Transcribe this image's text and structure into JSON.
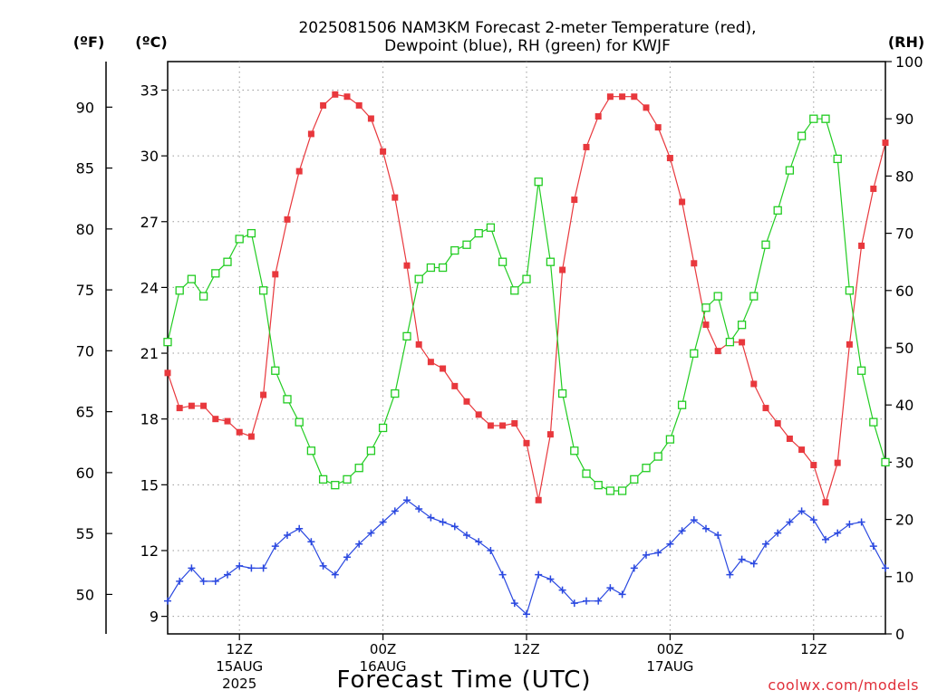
{
  "chart_data": {
    "type": "line",
    "title_line1": "2025081506 NAM3KM Forecast 2-meter Temperature (red),",
    "title_line2": "Dewpoint (blue), RH (green) for KWJF",
    "units": {
      "fahrenheit": "(ºF)",
      "celsius": "(ºC)",
      "rh": "(RH)"
    },
    "xlabel": "Forecast Time (UTC)",
    "credit": "coolwx.com/models",
    "x_range_hours": [
      0,
      60
    ],
    "celsius_axis": {
      "ylim": [
        8.2,
        34.3
      ],
      "ticks": [
        "9",
        "12",
        "15",
        "18",
        "21",
        "24",
        "27",
        "30",
        "33"
      ]
    },
    "fahrenheit_axis": {
      "ticks": [
        "50",
        "55",
        "60",
        "65",
        "70",
        "75",
        "80",
        "85",
        "90"
      ]
    },
    "rh_axis": {
      "ylim": [
        0,
        100
      ],
      "ticks": [
        "0",
        "10",
        "20",
        "30",
        "40",
        "50",
        "60",
        "70",
        "80",
        "90",
        "100"
      ]
    },
    "x_ticks": [
      {
        "hour": 6,
        "line1": "12Z",
        "line2": "15AUG",
        "line3": "2025"
      },
      {
        "hour": 18,
        "line1": "00Z",
        "line2": "16AUG",
        "line3": ""
      },
      {
        "hour": 30,
        "line1": "12Z",
        "line2": "",
        "line3": ""
      },
      {
        "hour": 42,
        "line1": "00Z",
        "line2": "17AUG",
        "line3": ""
      },
      {
        "hour": 54,
        "line1": "12Z",
        "line2": "",
        "line3": ""
      }
    ],
    "grid": true,
    "series": [
      {
        "key": "temperature",
        "axis": "celsius",
        "color": "#e8383d",
        "marker": "filled-square",
        "x": [
          0,
          1,
          2,
          3,
          4,
          5,
          6,
          7,
          8,
          9,
          10,
          11,
          12,
          13,
          14,
          15,
          16,
          17,
          18,
          19,
          20,
          21,
          22,
          23,
          24,
          25,
          26,
          27,
          28,
          29,
          30,
          31,
          32,
          33,
          34,
          35,
          36,
          37,
          38,
          39,
          40,
          41,
          42,
          43,
          44,
          45,
          46,
          47,
          48,
          49,
          50,
          51,
          52,
          53,
          54,
          55,
          56,
          57,
          58,
          59,
          60
        ],
        "values": [
          20.1,
          18.5,
          18.6,
          18.6,
          18.0,
          17.9,
          17.4,
          17.2,
          19.1,
          24.6,
          27.1,
          29.3,
          31.0,
          32.3,
          32.8,
          32.7,
          32.3,
          31.7,
          30.2,
          28.1,
          25.0,
          21.4,
          20.6,
          20.3,
          19.5,
          18.8,
          18.2,
          17.7,
          17.7,
          17.8,
          16.9,
          14.3,
          17.3,
          24.8,
          28.0,
          30.4,
          31.8,
          32.7,
          32.7,
          32.7,
          32.2,
          31.3,
          29.9,
          27.9,
          25.1,
          22.3,
          21.1,
          21.5,
          21.5,
          19.6,
          18.5,
          17.8,
          17.1,
          16.6,
          15.9,
          14.2,
          16.0,
          21.4,
          25.9,
          28.5,
          30.6
        ]
      },
      {
        "key": "dewpoint",
        "axis": "celsius",
        "color": "#2a48e0",
        "marker": "plus",
        "x": [
          0,
          1,
          2,
          3,
          4,
          5,
          6,
          7,
          8,
          9,
          10,
          11,
          12,
          13,
          14,
          15,
          16,
          17,
          18,
          19,
          20,
          21,
          22,
          23,
          24,
          25,
          26,
          27,
          28,
          29,
          30,
          31,
          32,
          33,
          34,
          35,
          36,
          37,
          38,
          39,
          40,
          41,
          42,
          43,
          44,
          45,
          46,
          47,
          48,
          49,
          50,
          51,
          52,
          53,
          54,
          55,
          56,
          57,
          58,
          59,
          60
        ],
        "values": [
          9.7,
          10.6,
          11.2,
          10.6,
          10.6,
          10.9,
          11.3,
          11.2,
          11.2,
          12.2,
          12.7,
          13.0,
          12.4,
          11.3,
          10.9,
          11.7,
          12.3,
          12.8,
          13.3,
          13.8,
          14.3,
          13.9,
          13.5,
          13.3,
          13.1,
          12.7,
          12.4,
          12.0,
          10.9,
          9.6,
          9.1,
          10.9,
          10.7,
          10.2,
          9.6,
          9.7,
          9.7,
          10.3,
          10.0,
          11.2,
          11.8,
          11.9,
          12.3,
          12.9,
          13.4,
          13.0,
          12.7,
          10.9,
          11.6,
          11.4,
          12.3,
          12.8,
          13.3,
          13.8,
          13.4,
          12.5,
          12.8,
          13.2,
          13.3,
          12.2,
          11.2
        ]
      },
      {
        "key": "rh",
        "axis": "rh",
        "color": "#22cc22",
        "marker": "open-square",
        "x": [
          0,
          1,
          2,
          3,
          4,
          5,
          6,
          7,
          8,
          9,
          10,
          11,
          12,
          13,
          14,
          15,
          16,
          17,
          18,
          19,
          20,
          21,
          22,
          23,
          24,
          25,
          26,
          27,
          28,
          29,
          30,
          31,
          32,
          33,
          34,
          35,
          36,
          37,
          38,
          39,
          40,
          41,
          42,
          43,
          44,
          45,
          46,
          47,
          48,
          49,
          50,
          51,
          52,
          53,
          54,
          55,
          56,
          57,
          58,
          59,
          60
        ],
        "values": [
          51,
          60,
          62,
          59,
          63,
          65,
          69,
          70,
          60,
          46,
          41,
          37,
          32,
          27,
          26,
          27,
          29,
          32,
          36,
          42,
          52,
          62,
          64,
          64,
          67,
          68,
          70,
          71,
          65,
          60,
          62,
          79,
          65,
          42,
          32,
          28,
          26,
          25,
          25,
          27,
          29,
          31,
          34,
          40,
          49,
          57,
          59,
          51,
          54,
          59,
          68,
          74,
          81,
          87,
          90,
          90,
          83,
          60,
          46,
          37,
          30
        ]
      }
    ]
  }
}
